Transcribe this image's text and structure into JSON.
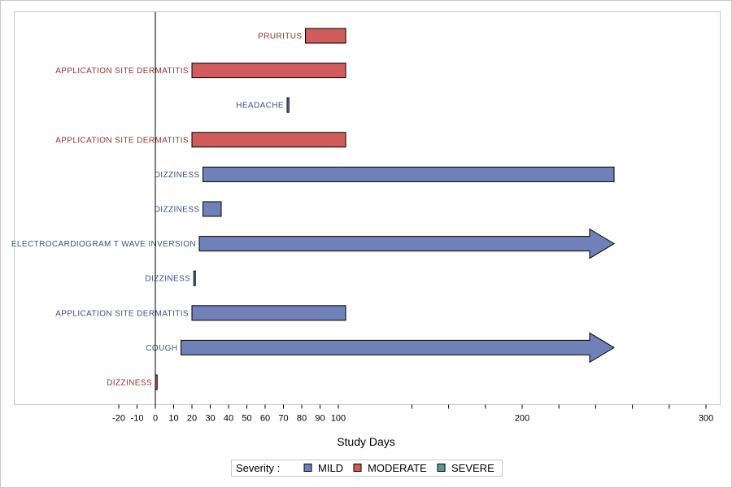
{
  "chart_data": {
    "type": "bar",
    "orientation": "horizontal",
    "xlabel": "Study Days",
    "xlim": [
      -20,
      300
    ],
    "tick_labels": [
      "-20",
      "-10",
      "0",
      "10",
      "20",
      "30",
      "40",
      "50",
      "60",
      "70",
      "80",
      "90",
      "100",
      "200",
      "300"
    ],
    "tick_values": [
      -20,
      -10,
      0,
      10,
      20,
      30,
      40,
      50,
      60,
      70,
      80,
      90,
      100,
      200,
      300
    ],
    "minor_ticks": [
      140,
      160,
      180,
      220,
      240,
      260,
      280
    ],
    "reference_line_x": 0,
    "events": [
      {
        "label": "PRURITUS",
        "severity": "MODERATE",
        "start": 82,
        "end": 104,
        "ongoing": false
      },
      {
        "label": "APPLICATION SITE DERMATITIS",
        "severity": "MODERATE",
        "start": 20,
        "end": 104,
        "ongoing": false
      },
      {
        "label": "HEADACHE",
        "severity": "MILD",
        "start": 72,
        "end": 73,
        "ongoing": false
      },
      {
        "label": "APPLICATION SITE DERMATITIS",
        "severity": "MODERATE",
        "start": 20,
        "end": 104,
        "ongoing": false
      },
      {
        "label": "DIZZINESS",
        "severity": "MILD",
        "start": 26,
        "end": 250,
        "ongoing": false
      },
      {
        "label": "DIZZINESS",
        "severity": "MILD",
        "start": 26,
        "end": 36,
        "ongoing": false
      },
      {
        "label": "ELECTROCARDIOGRAM T WAVE INVERSION",
        "severity": "MILD",
        "start": 24,
        "end": 250,
        "ongoing": true
      },
      {
        "label": "DIZZINESS",
        "severity": "MILD",
        "start": 21,
        "end": 21,
        "ongoing": false
      },
      {
        "label": "APPLICATION SITE DERMATITIS",
        "severity": "MILD",
        "start": 20,
        "end": 104,
        "ongoing": false
      },
      {
        "label": "COUGH",
        "severity": "MILD",
        "start": 14,
        "end": 250,
        "ongoing": true
      },
      {
        "label": "DIZZINESS",
        "severity": "MODERATE",
        "start": 0,
        "end": 1,
        "ongoing": false
      }
    ],
    "legend": {
      "title": "Severity :",
      "placement": "bottom-center",
      "items": [
        {
          "name": "MILD",
          "color": "#7080b8"
        },
        {
          "name": "MODERATE",
          "color": "#d05c5c"
        },
        {
          "name": "SEVERE",
          "color": "#5e9a94"
        }
      ]
    },
    "severity_colors": {
      "MILD": "#7080b8",
      "MODERATE": "#d05c5c",
      "SEVERE": "#5e9a94"
    },
    "label_colors": {
      "MILD": "#3c5088",
      "MODERATE": "#973030",
      "SEVERE": "#2e6a64"
    }
  }
}
